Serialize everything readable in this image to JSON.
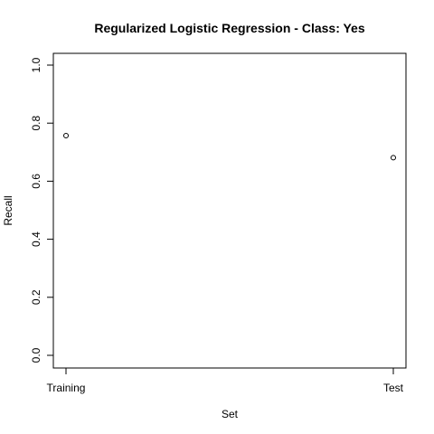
{
  "chart_data": {
    "type": "scatter",
    "title": "Regularized Logistic Regression - Class: Yes",
    "xlabel": "Set",
    "ylabel": "Recall",
    "categories": [
      "Training",
      "Test"
    ],
    "values": [
      0.757,
      0.681
    ],
    "ylim": [
      0,
      1
    ],
    "yticks": [
      "0.0",
      "0.2",
      "0.4",
      "0.6",
      "0.8",
      "1.0"
    ],
    "grid": false,
    "legend": "none"
  }
}
